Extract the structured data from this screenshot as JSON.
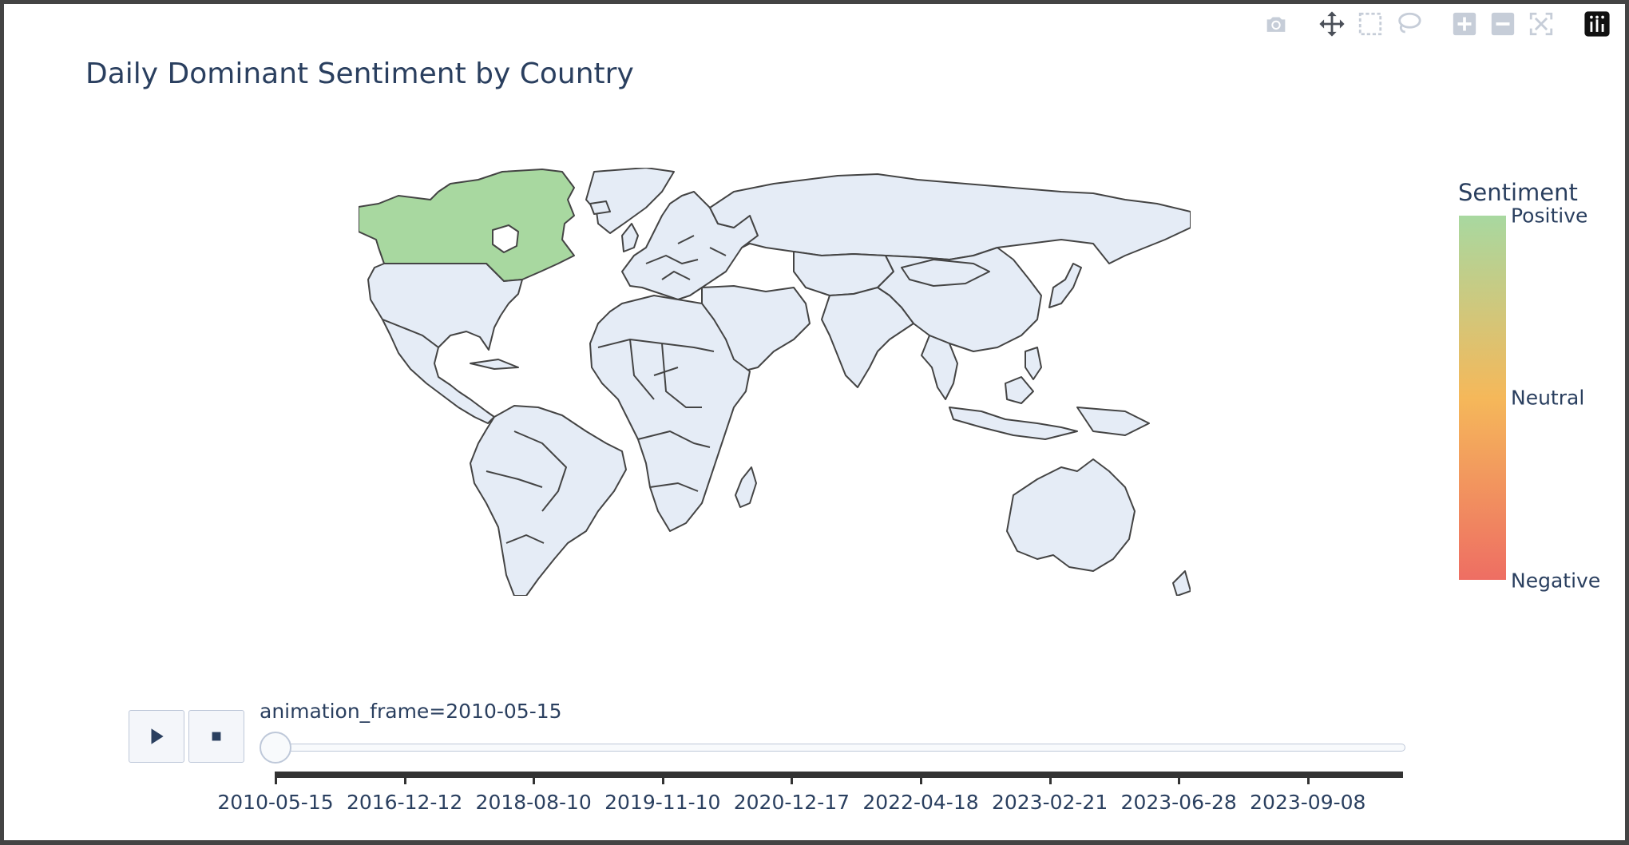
{
  "title": "Daily Dominant Sentiment by Country",
  "modebar": {
    "items": [
      {
        "name": "camera-icon",
        "label": "Download plot as a png"
      },
      {
        "name": "pan-icon",
        "label": "Pan"
      },
      {
        "name": "box-select-icon",
        "label": "Box Select"
      },
      {
        "name": "lasso-select-icon",
        "label": "Lasso Select"
      },
      {
        "name": "zoom-in-icon",
        "label": "Zoom in"
      },
      {
        "name": "zoom-out-icon",
        "label": "Zoom out"
      },
      {
        "name": "reset-icon",
        "label": "Reset"
      },
      {
        "name": "plotly-logo-icon",
        "label": "Produced with Plotly"
      }
    ]
  },
  "colorbar": {
    "title": "Sentiment",
    "labels": {
      "top": "Positive",
      "middle": "Neutral",
      "bottom": "Negative"
    },
    "colors": {
      "positive": "#a8d8a0",
      "neutral": "#f5b85a",
      "negative": "#ee6e63"
    }
  },
  "map": {
    "default_fill": "#e5ecf6",
    "border_color": "#444444",
    "highlighted": [
      {
        "country": "Canada",
        "sentiment": "Positive",
        "color": "#a8d8a0"
      }
    ]
  },
  "animation": {
    "current_label": "animation_frame=2010-05-15",
    "play_icon": "play-icon",
    "stop_icon": "stop-icon",
    "position": 0,
    "ticks": [
      "2010-05-15",
      "2016-12-12",
      "2018-08-10",
      "2019-11-10",
      "2020-12-17",
      "2022-04-18",
      "2023-02-21",
      "2023-06-28",
      "2023-09-08"
    ]
  }
}
